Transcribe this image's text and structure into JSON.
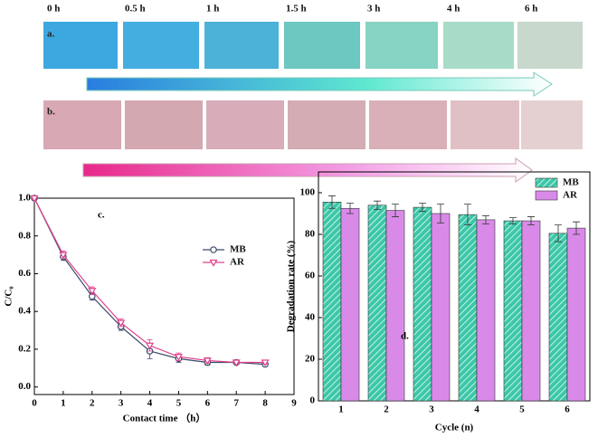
{
  "photos": {
    "times": [
      "0 h",
      "0.5 h",
      "1 h",
      "1.5 h",
      "3 h",
      "4 h",
      "6 h"
    ],
    "rows": [
      "a.",
      "b."
    ]
  },
  "chart_data": [
    {
      "type": "line",
      "annotation": "c.",
      "x_label": "Contact time （h）",
      "y_label": "C/C₀",
      "x": [
        0,
        1,
        2,
        3,
        4,
        5,
        6,
        7,
        8
      ],
      "series": [
        {
          "name": "MB",
          "color": "#3a4a6a",
          "marker": "circle",
          "values": [
            1.0,
            0.69,
            0.48,
            0.32,
            0.19,
            0.15,
            0.13,
            0.13,
            0.12
          ],
          "errors": [
            0.005,
            0.02,
            0.02,
            0.02,
            0.04,
            0.02,
            0.015,
            0.01,
            0.01
          ]
        },
        {
          "name": "AR",
          "color": "#e0408a",
          "marker": "triangle",
          "values": [
            1.0,
            0.7,
            0.51,
            0.34,
            0.22,
            0.16,
            0.14,
            0.13,
            0.13
          ],
          "errors": [
            0.005,
            0.02,
            0.02,
            0.02,
            0.03,
            0.02,
            0.015,
            0.01,
            0.01
          ]
        }
      ],
      "xlim": [
        0,
        9
      ],
      "xticks": [
        0,
        1,
        2,
        3,
        4,
        5,
        6,
        7,
        8,
        9
      ],
      "ylim": [
        -0.04,
        1.0
      ],
      "yticks": [
        {
          "value": 0,
          "label": "0.0"
        },
        0.2,
        0.4,
        0.6,
        0.8,
        {
          "value": 1,
          "label": "1.0"
        }
      ],
      "legend": "right"
    },
    {
      "type": "bar",
      "annotation": "d.",
      "x_label": "Cycle (n)",
      "y_label": "Degradation rate (%)",
      "categories": [
        "1",
        "2",
        "3",
        "4",
        "5",
        "6"
      ],
      "series": [
        {
          "name": "MB",
          "color": "#3cc8a8",
          "hatch": true,
          "values": [
            95.5,
            94,
            93,
            89.5,
            86.5,
            80.5
          ],
          "errors": [
            3,
            2,
            2,
            5,
            1.5,
            4
          ]
        },
        {
          "name": "AR",
          "color": "#d98ae8",
          "hatch": false,
          "values": [
            92.5,
            91.5,
            90,
            87,
            86.5,
            83
          ],
          "errors": [
            2.5,
            3,
            4.5,
            2,
            2,
            3
          ]
        }
      ],
      "ylim": [
        0,
        110
      ],
      "yticks": [
        0,
        20,
        40,
        60,
        80,
        100
      ],
      "legend": "top-right"
    }
  ]
}
